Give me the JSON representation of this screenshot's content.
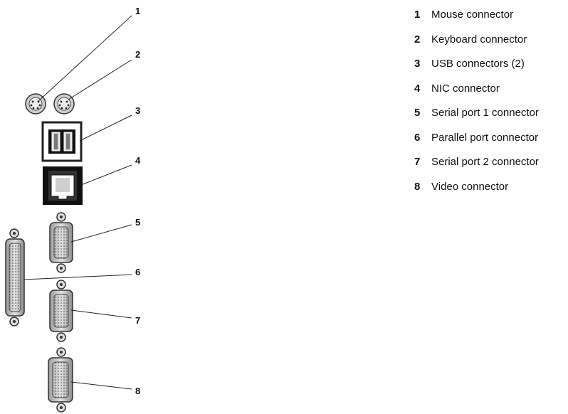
{
  "callouts": [
    {
      "number": "1",
      "label": "Mouse connector"
    },
    {
      "number": "2",
      "label": "Keyboard connector"
    },
    {
      "number": "3",
      "label": "USB connectors (2)"
    },
    {
      "number": "4",
      "label": "NIC connector"
    },
    {
      "number": "5",
      "label": "Serial port 1 connector"
    },
    {
      "number": "6",
      "label": "Parallel port connector"
    },
    {
      "number": "7",
      "label": "Serial port 2 connector"
    },
    {
      "number": "8",
      "label": "Video connector"
    }
  ]
}
